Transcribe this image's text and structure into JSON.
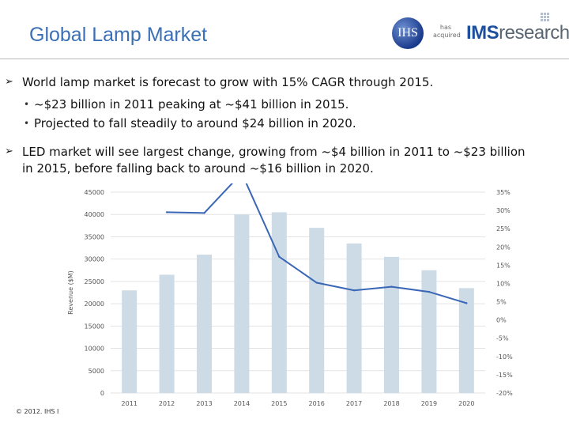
{
  "slide": {
    "title": "Global Lamp Market",
    "acquired_text": "has acquired",
    "logo_ihs": "IHS",
    "logo_ims_bold": "IMS",
    "logo_ims_light": "research",
    "copyright": "© 2012. IHS I"
  },
  "bullets": [
    {
      "text": "World lamp market is forecast to grow with 15% CAGR through 2015.",
      "sub": [
        "~$23 billion in 2011 peaking at ~$41 billion in 2015.",
        "Projected to fall steadily to around $24 billion in 2020."
      ]
    },
    {
      "text_line1": "LED market will see largest change, growing from ~$4 billion in 2011 to ~$23 billion",
      "text_line2": "in 2015, before falling back to around ~$16 billion in 2020."
    }
  ],
  "chart_data": {
    "type": "bar",
    "categories": [
      "2011",
      "2012",
      "2013",
      "2014",
      "2015",
      "2016",
      "2017",
      "2018",
      "2019",
      "2020"
    ],
    "series": [
      {
        "values": [
          23000,
          26500,
          31000,
          40000,
          40500,
          37000,
          33500,
          30500,
          27500,
          23500
        ],
        "color": "#ccdbe6"
      },
      {
        "type": "line",
        "values": [
          null,
          29.5,
          29.3,
          40.2,
          17.3,
          10.2,
          8.1,
          9.1,
          7.7,
          4.6
        ],
        "color": "#3a66b6"
      }
    ],
    "ylabel": "Revenue ($M)",
    "ylim": [
      0,
      45000
    ],
    "yticks": [
      "0",
      "5000",
      "10000",
      "15000",
      "20000",
      "25000",
      "30000",
      "35000",
      "40000",
      "45000"
    ],
    "y2lim": [
      -20,
      35
    ],
    "y2ticks": [
      "-20%",
      "-15%",
      "-10%",
      "-5%",
      "0%",
      "5%",
      "10%",
      "15%",
      "20%",
      "25%",
      "30%",
      "35%"
    ],
    "grid": true
  }
}
